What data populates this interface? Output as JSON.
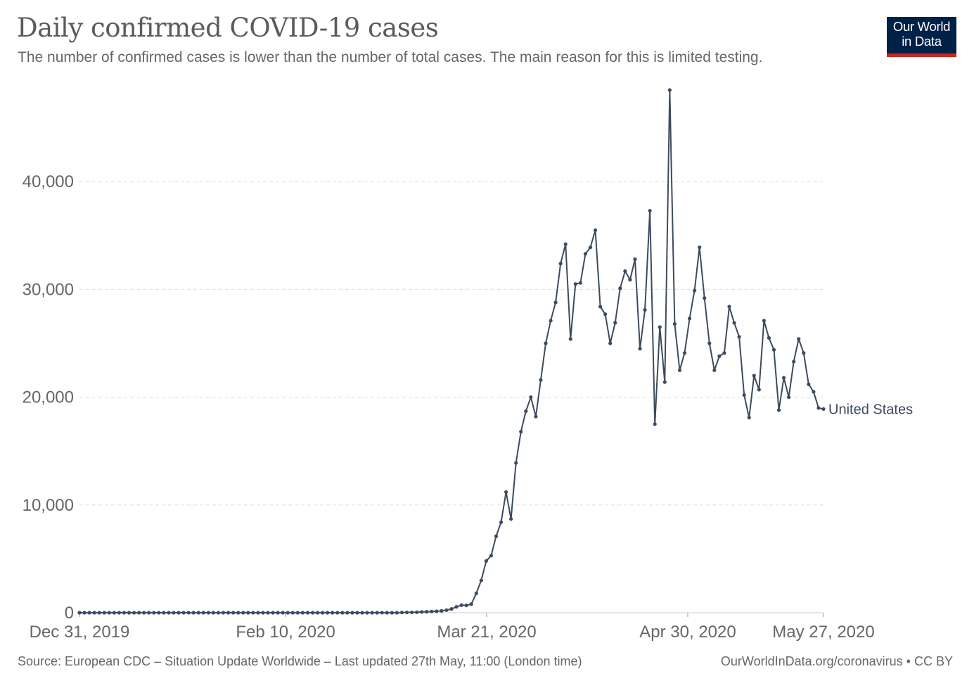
{
  "header": {
    "title": "Daily confirmed COVID-19 cases",
    "subtitle": "The number of confirmed cases is lower than the number of total cases. The main reason for this is limited testing.",
    "logo_line1": "Our World",
    "logo_line2": "in Data"
  },
  "footer": {
    "source": "Source: European CDC – Situation Update Worldwide – Last updated 27th May, 11:00 (London time)",
    "credit": "OurWorldInData.org/coronavirus • CC BY"
  },
  "colors": {
    "series": "#3d4b5e",
    "grid": "#dddddd",
    "logo_bg": "#002147",
    "logo_accent": "#ce261e"
  },
  "chart_data": {
    "type": "line",
    "title": "Daily confirmed COVID-19 cases",
    "subtitle": "The number of confirmed cases is lower than the number of total cases. The main reason for this is limited testing.",
    "x_start_date": "2019-12-31",
    "x_end_date": "2020-05-27",
    "x_ticks": [
      "Dec 31, 2019",
      "Feb 10, 2020",
      "Mar 21, 2020",
      "Apr 30, 2020",
      "May 27, 2020"
    ],
    "y_ticks": [
      "0",
      "10,000",
      "20,000",
      "30,000",
      "40,000"
    ],
    "y_tick_values": [
      0,
      10000,
      20000,
      30000,
      40000
    ],
    "ylim": [
      0,
      50000
    ],
    "grid": "horizontal dashed",
    "series": [
      {
        "name": "United States",
        "values": [
          0,
          0,
          0,
          0,
          0,
          0,
          0,
          0,
          0,
          0,
          0,
          0,
          0,
          0,
          0,
          0,
          0,
          0,
          0,
          0,
          0,
          1,
          0,
          0,
          0,
          0,
          0,
          0,
          0,
          0,
          0,
          1,
          0,
          0,
          0,
          2,
          0,
          0,
          0,
          0,
          0,
          0,
          0,
          0,
          0,
          0,
          0,
          0,
          0,
          0,
          0,
          0,
          0,
          0,
          0,
          0,
          0,
          0,
          0,
          0,
          0,
          3,
          0,
          0,
          0,
          20,
          30,
          35,
          45,
          70,
          90,
          110,
          130,
          170,
          240,
          350,
          550,
          700,
          680,
          800,
          1800,
          3000,
          4800,
          5300,
          7100,
          8400,
          11200,
          8700,
          13900,
          16800,
          18700,
          20000,
          18200,
          21600,
          25000,
          27100,
          28800,
          32400,
          34200,
          25400,
          30500,
          30600,
          33300,
          33900,
          35500,
          28400,
          27700,
          25000,
          26900,
          30100,
          31700,
          30900,
          32800,
          24500,
          28100,
          37300,
          17500,
          26500,
          21400,
          48500,
          26800,
          22500,
          24100,
          27300,
          29900,
          33900,
          29200,
          25000,
          22500,
          23800,
          24100,
          28400,
          26900,
          25600,
          20200,
          18100,
          22000,
          20700,
          27100,
          25500,
          24400,
          18800,
          21800,
          20000,
          23300,
          25400,
          24100,
          21200,
          20500,
          19000,
          18900
        ]
      }
    ]
  }
}
